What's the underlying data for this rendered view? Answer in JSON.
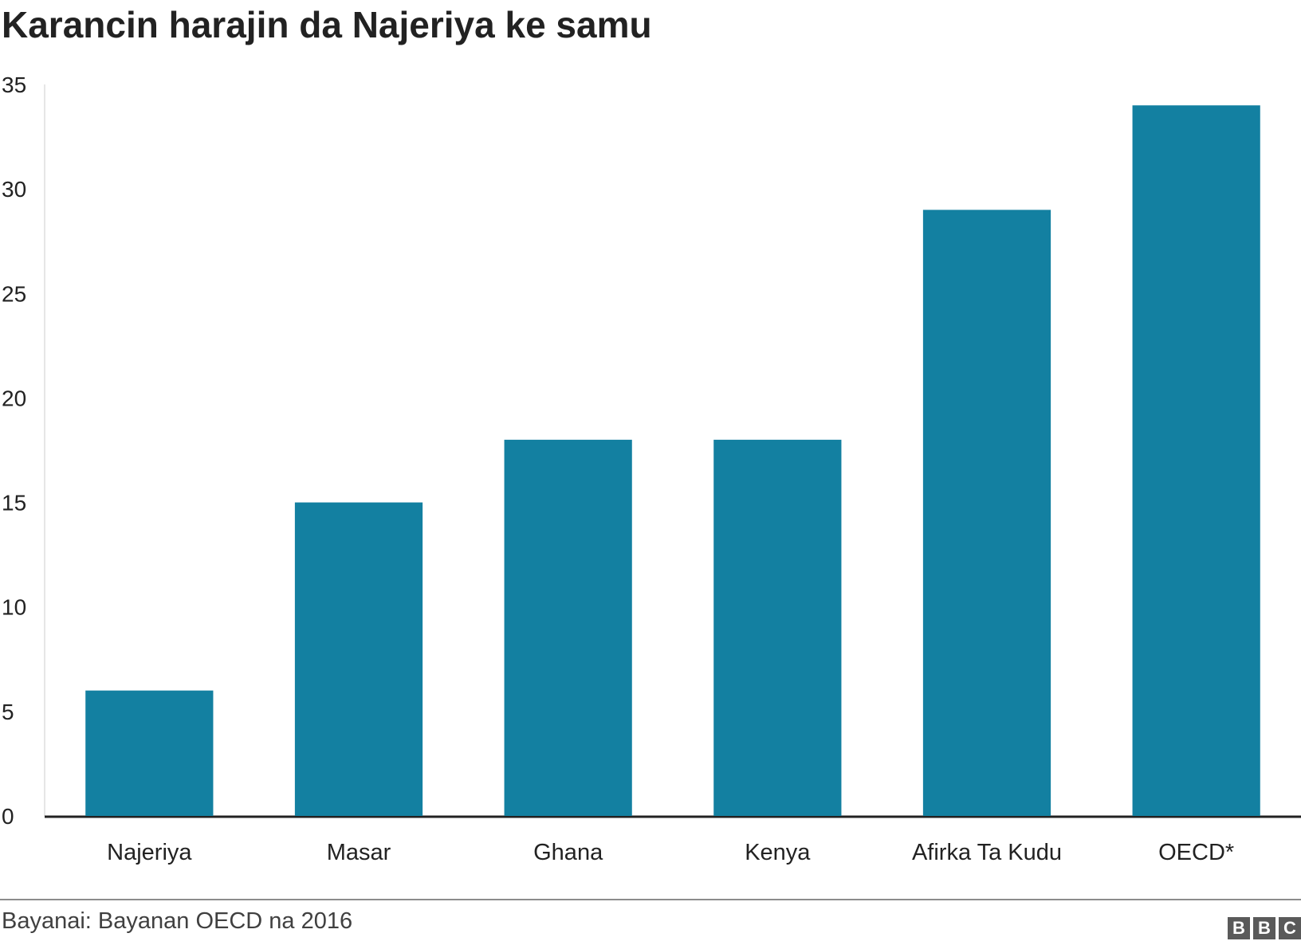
{
  "chart_data": {
    "type": "bar",
    "title": "Karancin harajin da Najeriya ke samu",
    "categories": [
      "Najeriya",
      "Masar",
      "Ghana",
      "Kenya",
      "Afirka Ta Kudu",
      "OECD*"
    ],
    "values": [
      6,
      15,
      18,
      18,
      29,
      34
    ],
    "yticks": [
      "0",
      "5",
      "10",
      "15",
      "20",
      "25",
      "30",
      "35"
    ],
    "ylim": [
      0,
      35
    ],
    "xlabel": "",
    "ylabel": "",
    "grid": false,
    "legend": "none",
    "bar_color": "#1380A1",
    "axis_color": "#222222"
  },
  "footer": {
    "source": "Bayanai: Bayanan OECD na 2016",
    "logo_letters": [
      "B",
      "B",
      "C"
    ]
  }
}
